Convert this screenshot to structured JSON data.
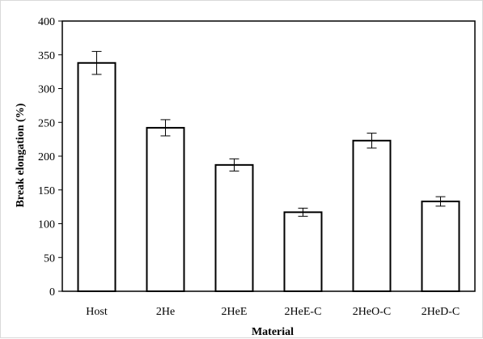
{
  "chart_data": {
    "type": "bar",
    "title": "",
    "xlabel": "Material",
    "ylabel": "Break elongation  (%)",
    "categories": [
      "Host",
      "2He",
      "2HeE",
      "2HeE-C",
      "2HeO-C",
      "2HeD-C"
    ],
    "values": [
      338,
      242,
      187,
      117,
      223,
      133
    ],
    "errors": [
      17,
      12,
      9,
      6,
      11,
      7
    ],
    "ylim": [
      0,
      400
    ],
    "yticks": [
      0,
      50,
      100,
      150,
      200,
      250,
      300,
      350,
      400
    ],
    "grid": false,
    "legend": "none",
    "colors": {
      "bar_fill": "#ffffff",
      "bar_stroke": "#000000",
      "axis": "#000000"
    }
  }
}
